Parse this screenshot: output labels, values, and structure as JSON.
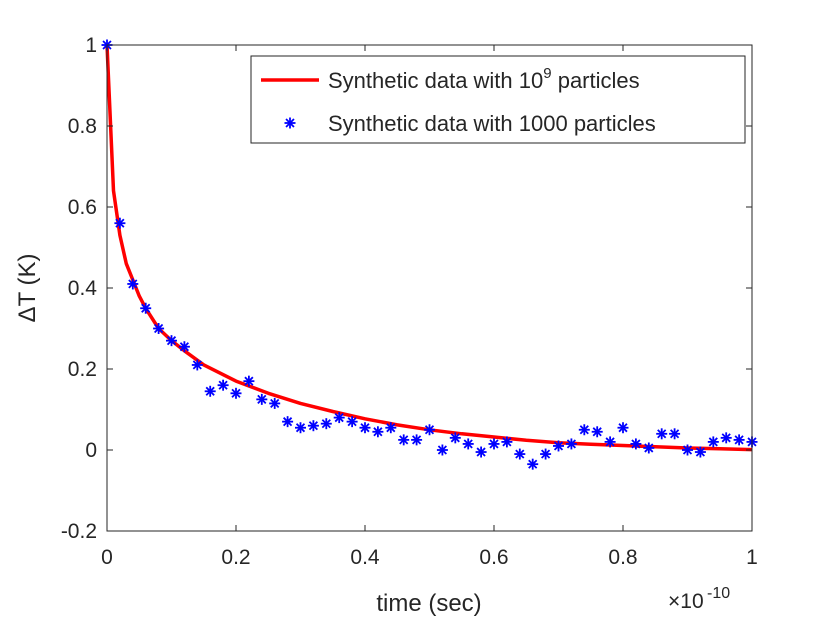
{
  "chart_data": {
    "type": "line",
    "title": "",
    "xlabel": "time (sec)",
    "ylabel": "ΔT (K)",
    "x_exponent_label": "×10",
    "x_exponent": "-10",
    "xlim": [
      0,
      1
    ],
    "ylim": [
      -0.2,
      1
    ],
    "x_ticks": [
      0,
      0.2,
      0.4,
      0.6,
      0.8,
      1
    ],
    "x_tick_labels": [
      "0",
      "0.2",
      "0.4",
      "0.6",
      "0.8",
      "1"
    ],
    "y_ticks": [
      -0.2,
      0,
      0.2,
      0.4,
      0.6,
      0.8,
      1
    ],
    "y_tick_labels": [
      "-0.2",
      "0",
      "0.2",
      "0.4",
      "0.6",
      "0.8",
      "1"
    ],
    "grid": false,
    "legend_position": "top-right",
    "series": [
      {
        "name": "Synthetic data with 10",
        "name_superscript": "9",
        "name_suffix": " particles",
        "style": "line",
        "color": "#ff0000",
        "x": [
          0,
          0.01,
          0.02,
          0.03,
          0.04,
          0.05,
          0.06,
          0.08,
          0.1,
          0.12,
          0.15,
          0.2,
          0.25,
          0.3,
          0.35,
          0.4,
          0.45,
          0.5,
          0.55,
          0.6,
          0.65,
          0.7,
          0.75,
          0.8,
          0.85,
          0.9,
          0.95,
          1.0
        ],
        "y": [
          1.0,
          0.64,
          0.53,
          0.46,
          0.42,
          0.38,
          0.35,
          0.3,
          0.27,
          0.245,
          0.21,
          0.17,
          0.14,
          0.115,
          0.095,
          0.077,
          0.062,
          0.05,
          0.04,
          0.032,
          0.024,
          0.018,
          0.014,
          0.011,
          0.008,
          0.005,
          0.003,
          0.001
        ]
      },
      {
        "name": "Synthetic data with 1000 particles",
        "style": "markers",
        "marker": "asterisk",
        "color": "#0000ff",
        "x": [
          0,
          0.02,
          0.04,
          0.06,
          0.08,
          0.1,
          0.12,
          0.14,
          0.16,
          0.18,
          0.2,
          0.22,
          0.24,
          0.26,
          0.28,
          0.3,
          0.32,
          0.34,
          0.36,
          0.38,
          0.4,
          0.42,
          0.44,
          0.46,
          0.48,
          0.5,
          0.52,
          0.54,
          0.56,
          0.58,
          0.6,
          0.62,
          0.64,
          0.66,
          0.68,
          0.7,
          0.72,
          0.74,
          0.76,
          0.78,
          0.8,
          0.82,
          0.84,
          0.86,
          0.88,
          0.9,
          0.92,
          0.94,
          0.96,
          0.98,
          1.0
        ],
        "y": [
          1.0,
          0.56,
          0.41,
          0.35,
          0.3,
          0.27,
          0.255,
          0.21,
          0.145,
          0.16,
          0.14,
          0.17,
          0.125,
          0.115,
          0.07,
          0.055,
          0.06,
          0.065,
          0.08,
          0.07,
          0.055,
          0.045,
          0.055,
          0.025,
          0.025,
          0.05,
          0.0,
          0.03,
          0.015,
          -0.005,
          0.015,
          0.02,
          -0.01,
          -0.035,
          -0.01,
          0.01,
          0.015,
          0.05,
          0.045,
          0.02,
          0.055,
          0.015,
          0.005,
          0.04,
          0.04,
          0.0,
          -0.005,
          0.02,
          0.03,
          0.025,
          0.02
        ]
      }
    ]
  }
}
